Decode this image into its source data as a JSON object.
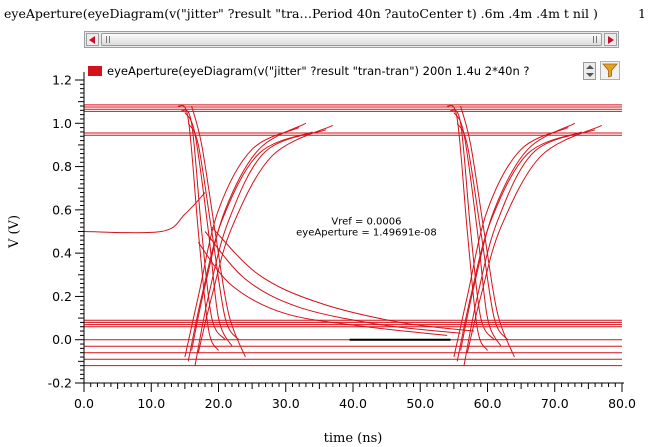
{
  "expression_bar": {
    "text": "eyeAperture(eyeDiagram(v(\"jitter\" ?result \"tra…Period 40n ?autoCenter t)  .6m .4m .4m t nil )",
    "page": "1"
  },
  "legend": {
    "label": "eyeAperture(eyeDiagram(v(\"jitter\" ?result \"tran-tran\") 200n 1.4u 2*40n ?"
  },
  "colors": {
    "trace": "#d4121a",
    "marker": "#000000",
    "axis": "#000000"
  },
  "icons": [
    "scroll-left-arrow-icon",
    "scroll-right-arrow-icon",
    "spin-up-icon",
    "spin-down-icon",
    "filter-funnel-icon"
  ],
  "chart_data": {
    "type": "line",
    "xlabel": "time (ns)",
    "ylabel": "V (V)",
    "xlim": [
      0,
      80
    ],
    "ylim": [
      -0.2,
      1.2
    ],
    "x_ticks": [
      "0.0",
      "10.0",
      "20.0",
      "30.0",
      "40.0",
      "50.0",
      "60.0",
      "70.0",
      "80.0"
    ],
    "y_ticks": [
      "-0.2",
      "0.0",
      "0.2",
      "0.4",
      "0.6",
      "0.8",
      "1.0",
      "1.2"
    ],
    "grid": false,
    "annotations": [
      "Vref = 0.0006",
      "eyeAperture = 1.49691e-08"
    ],
    "aperture_marker": {
      "x": [
        39.5,
        54.5
      ],
      "y": 0.0
    },
    "high_levels": [
      1.085,
      1.075,
      1.065,
      1.055,
      0.955,
      0.945
    ],
    "low_levels": [
      0.09,
      0.08,
      0.07,
      0.06,
      0.0,
      -0.03,
      -0.06,
      -0.09,
      -0.12
    ],
    "fall_edges": [
      [
        [
          14.0,
          1.08
        ],
        [
          15.5,
          1.02
        ],
        [
          17.0,
          0.5
        ],
        [
          18.5,
          0.05
        ],
        [
          20.0,
          -0.05
        ]
      ],
      [
        [
          14.5,
          1.06
        ],
        [
          16.0,
          1.0
        ],
        [
          17.5,
          0.5
        ],
        [
          19.0,
          0.1
        ],
        [
          21.0,
          0.0
        ]
      ],
      [
        [
          15.0,
          1.05
        ],
        [
          16.5,
          0.95
        ],
        [
          18.5,
          0.5
        ],
        [
          20.0,
          0.1
        ],
        [
          22.0,
          -0.03
        ]
      ],
      [
        [
          15.5,
          1.0
        ],
        [
          17.0,
          0.9
        ],
        [
          19.0,
          0.5
        ],
        [
          21.0,
          0.1
        ],
        [
          23.0,
          0.0
        ]
      ],
      [
        [
          16.0,
          1.08
        ],
        [
          17.5,
          0.9
        ],
        [
          19.5,
          0.5
        ],
        [
          21.5,
          0.12
        ],
        [
          24.0,
          -0.08
        ]
      ],
      [
        [
          54.0,
          1.08
        ],
        [
          55.5,
          1.02
        ],
        [
          57.0,
          0.5
        ],
        [
          58.5,
          0.05
        ],
        [
          60.0,
          -0.05
        ]
      ],
      [
        [
          54.5,
          1.06
        ],
        [
          56.0,
          1.0
        ],
        [
          57.5,
          0.5
        ],
        [
          59.0,
          0.1
        ],
        [
          61.0,
          0.0
        ]
      ],
      [
        [
          55.0,
          1.05
        ],
        [
          56.5,
          0.95
        ],
        [
          58.5,
          0.5
        ],
        [
          60.0,
          0.1
        ],
        [
          62.0,
          -0.03
        ]
      ],
      [
        [
          55.5,
          1.0
        ],
        [
          57.0,
          0.9
        ],
        [
          59.0,
          0.5
        ],
        [
          61.0,
          0.1
        ],
        [
          63.0,
          0.0
        ]
      ],
      [
        [
          56.0,
          1.08
        ],
        [
          57.5,
          0.9
        ],
        [
          59.5,
          0.5
        ],
        [
          61.5,
          0.12
        ],
        [
          64.0,
          -0.08
        ]
      ]
    ],
    "rise_edges": [
      [
        [
          15.0,
          -0.08
        ],
        [
          17.0,
          0.2
        ],
        [
          20.0,
          0.6
        ],
        [
          25.0,
          0.88
        ],
        [
          32.0,
          0.98
        ]
      ],
      [
        [
          15.5,
          -0.1
        ],
        [
          17.5,
          0.2
        ],
        [
          20.5,
          0.55
        ],
        [
          26.0,
          0.86
        ],
        [
          34.0,
          0.96
        ]
      ],
      [
        [
          16.0,
          -0.05
        ],
        [
          18.0,
          0.25
        ],
        [
          21.0,
          0.6
        ],
        [
          26.0,
          0.88
        ],
        [
          33.0,
          1.0
        ]
      ],
      [
        [
          16.5,
          -0.12
        ],
        [
          18.5,
          0.2
        ],
        [
          21.5,
          0.55
        ],
        [
          27.0,
          0.87
        ],
        [
          36.0,
          0.97
        ]
      ],
      [
        [
          17.0,
          -0.06
        ],
        [
          19.0,
          0.2
        ],
        [
          22.0,
          0.52
        ],
        [
          28.0,
          0.85
        ],
        [
          37.0,
          0.99
        ]
      ],
      [
        [
          55.0,
          -0.08
        ],
        [
          57.0,
          0.2
        ],
        [
          60.0,
          0.6
        ],
        [
          65.0,
          0.88
        ],
        [
          72.0,
          0.98
        ]
      ],
      [
        [
          55.5,
          -0.1
        ],
        [
          57.5,
          0.2
        ],
        [
          60.5,
          0.55
        ],
        [
          66.0,
          0.86
        ],
        [
          74.0,
          0.96
        ]
      ],
      [
        [
          56.0,
          -0.05
        ],
        [
          58.0,
          0.25
        ],
        [
          61.0,
          0.6
        ],
        [
          66.0,
          0.88
        ],
        [
          73.0,
          1.0
        ]
      ],
      [
        [
          56.5,
          -0.12
        ],
        [
          58.5,
          0.2
        ],
        [
          61.5,
          0.55
        ],
        [
          67.0,
          0.87
        ],
        [
          76.0,
          0.97
        ]
      ],
      [
        [
          57.0,
          -0.06
        ],
        [
          59.0,
          0.2
        ],
        [
          62.0,
          0.52
        ],
        [
          68.0,
          0.85
        ],
        [
          77.0,
          0.99
        ]
      ]
    ],
    "decay_curves": [
      [
        [
          17.0,
          0.45
        ],
        [
          22.0,
          0.25
        ],
        [
          30.0,
          0.12
        ],
        [
          42.0,
          0.06
        ],
        [
          54.0,
          0.02
        ]
      ],
      [
        [
          18.0,
          0.5
        ],
        [
          24.0,
          0.28
        ],
        [
          32.0,
          0.15
        ],
        [
          44.0,
          0.07
        ],
        [
          56.0,
          0.03
        ]
      ],
      [
        [
          19.0,
          0.52
        ],
        [
          26.0,
          0.3
        ],
        [
          35.0,
          0.17
        ],
        [
          47.0,
          0.08
        ],
        [
          58.0,
          0.04
        ]
      ]
    ],
    "initial_trace": [
      [
        0.0,
        0.5
      ],
      [
        11.5,
        0.5
      ],
      [
        15.0,
        0.58
      ],
      [
        18.0,
        0.68
      ]
    ]
  }
}
